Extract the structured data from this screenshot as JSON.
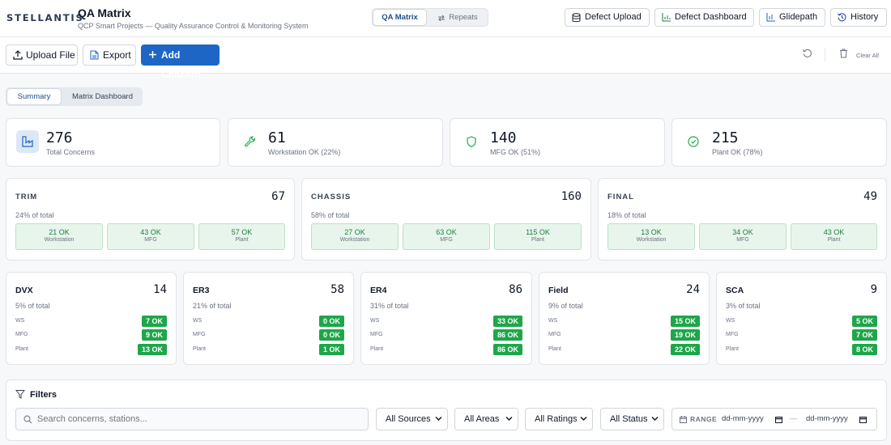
{
  "header": {
    "logo": "STELLANTIS",
    "title": "QA Matrix",
    "subtitle": "QCP Smart Projects — Quality Assurance Control & Monitoring System",
    "tabs": [
      {
        "label": "QA Matrix"
      },
      {
        "label": "Repeats"
      }
    ],
    "buttons": {
      "defect_upload": "Defect Upload",
      "defect_dashboard": "Defect Dashboard",
      "glidepath": "Glidepath",
      "history": "History"
    }
  },
  "toolbar": {
    "upload_file": "Upload File",
    "export": "Export",
    "add_concern": "Add Concern",
    "clear_all": "Clear All"
  },
  "view_tabs": [
    {
      "label": "Summary"
    },
    {
      "label": "Matrix Dashboard"
    }
  ],
  "stats": [
    {
      "value": "276",
      "label": "Total Concerns"
    },
    {
      "value": "61",
      "label": "Workstation OK (22%)"
    },
    {
      "value": "140",
      "label": "MFG OK (51%)"
    },
    {
      "value": "215",
      "label": "Plant OK (78%)"
    }
  ],
  "areas": [
    {
      "name": "TRIM",
      "total": "67",
      "pct": "24% of total",
      "boxes": [
        {
          "value": "21 OK",
          "label": "Workstation"
        },
        {
          "value": "43 OK",
          "label": "MFG"
        },
        {
          "value": "57 OK",
          "label": "Plant"
        }
      ]
    },
    {
      "name": "CHASSIS",
      "total": "160",
      "pct": "58% of total",
      "boxes": [
        {
          "value": "27 OK",
          "label": "Workstation"
        },
        {
          "value": "63 OK",
          "label": "MFG"
        },
        {
          "value": "115 OK",
          "label": "Plant"
        }
      ]
    },
    {
      "name": "FINAL",
      "total": "49",
      "pct": "18% of total",
      "boxes": [
        {
          "value": "13 OK",
          "label": "Workstation"
        },
        {
          "value": "34 OK",
          "label": "MFG"
        },
        {
          "value": "43 OK",
          "label": "Plant"
        }
      ]
    }
  ],
  "source_row_labels": [
    "WS",
    "MFG",
    "Plant"
  ],
  "sources": [
    {
      "name": "DVX",
      "total": "14",
      "pct": "5% of total",
      "ws": "7 OK",
      "mfg": "9 OK",
      "plant": "13 OK"
    },
    {
      "name": "ER3",
      "total": "58",
      "pct": "21% of total",
      "ws": "0 OK",
      "mfg": "0 OK",
      "plant": "1 OK"
    },
    {
      "name": "ER4",
      "total": "86",
      "pct": "31% of total",
      "ws": "33 OK",
      "mfg": "86 OK",
      "plant": "86 OK"
    },
    {
      "name": "Field",
      "total": "24",
      "pct": "9% of total",
      "ws": "15 OK",
      "mfg": "19 OK",
      "plant": "22 OK"
    },
    {
      "name": "SCA",
      "total": "9",
      "pct": "3% of total",
      "ws": "5 OK",
      "mfg": "7 OK",
      "plant": "8 OK"
    }
  ],
  "filters": {
    "title": "Filters",
    "search_placeholder": "Search concerns, stations...",
    "sources": "All Sources",
    "areas": "All Areas",
    "ratings": "All Ratings",
    "status": "All Status",
    "range_label": "RANGE",
    "date_placeholder": "dd-mm-yyyy",
    "range_sep": "—"
  },
  "colors": {
    "primary": "#1e66c6",
    "ok_green": "#1fa64a",
    "ok_bg": "#e8f5ec"
  }
}
